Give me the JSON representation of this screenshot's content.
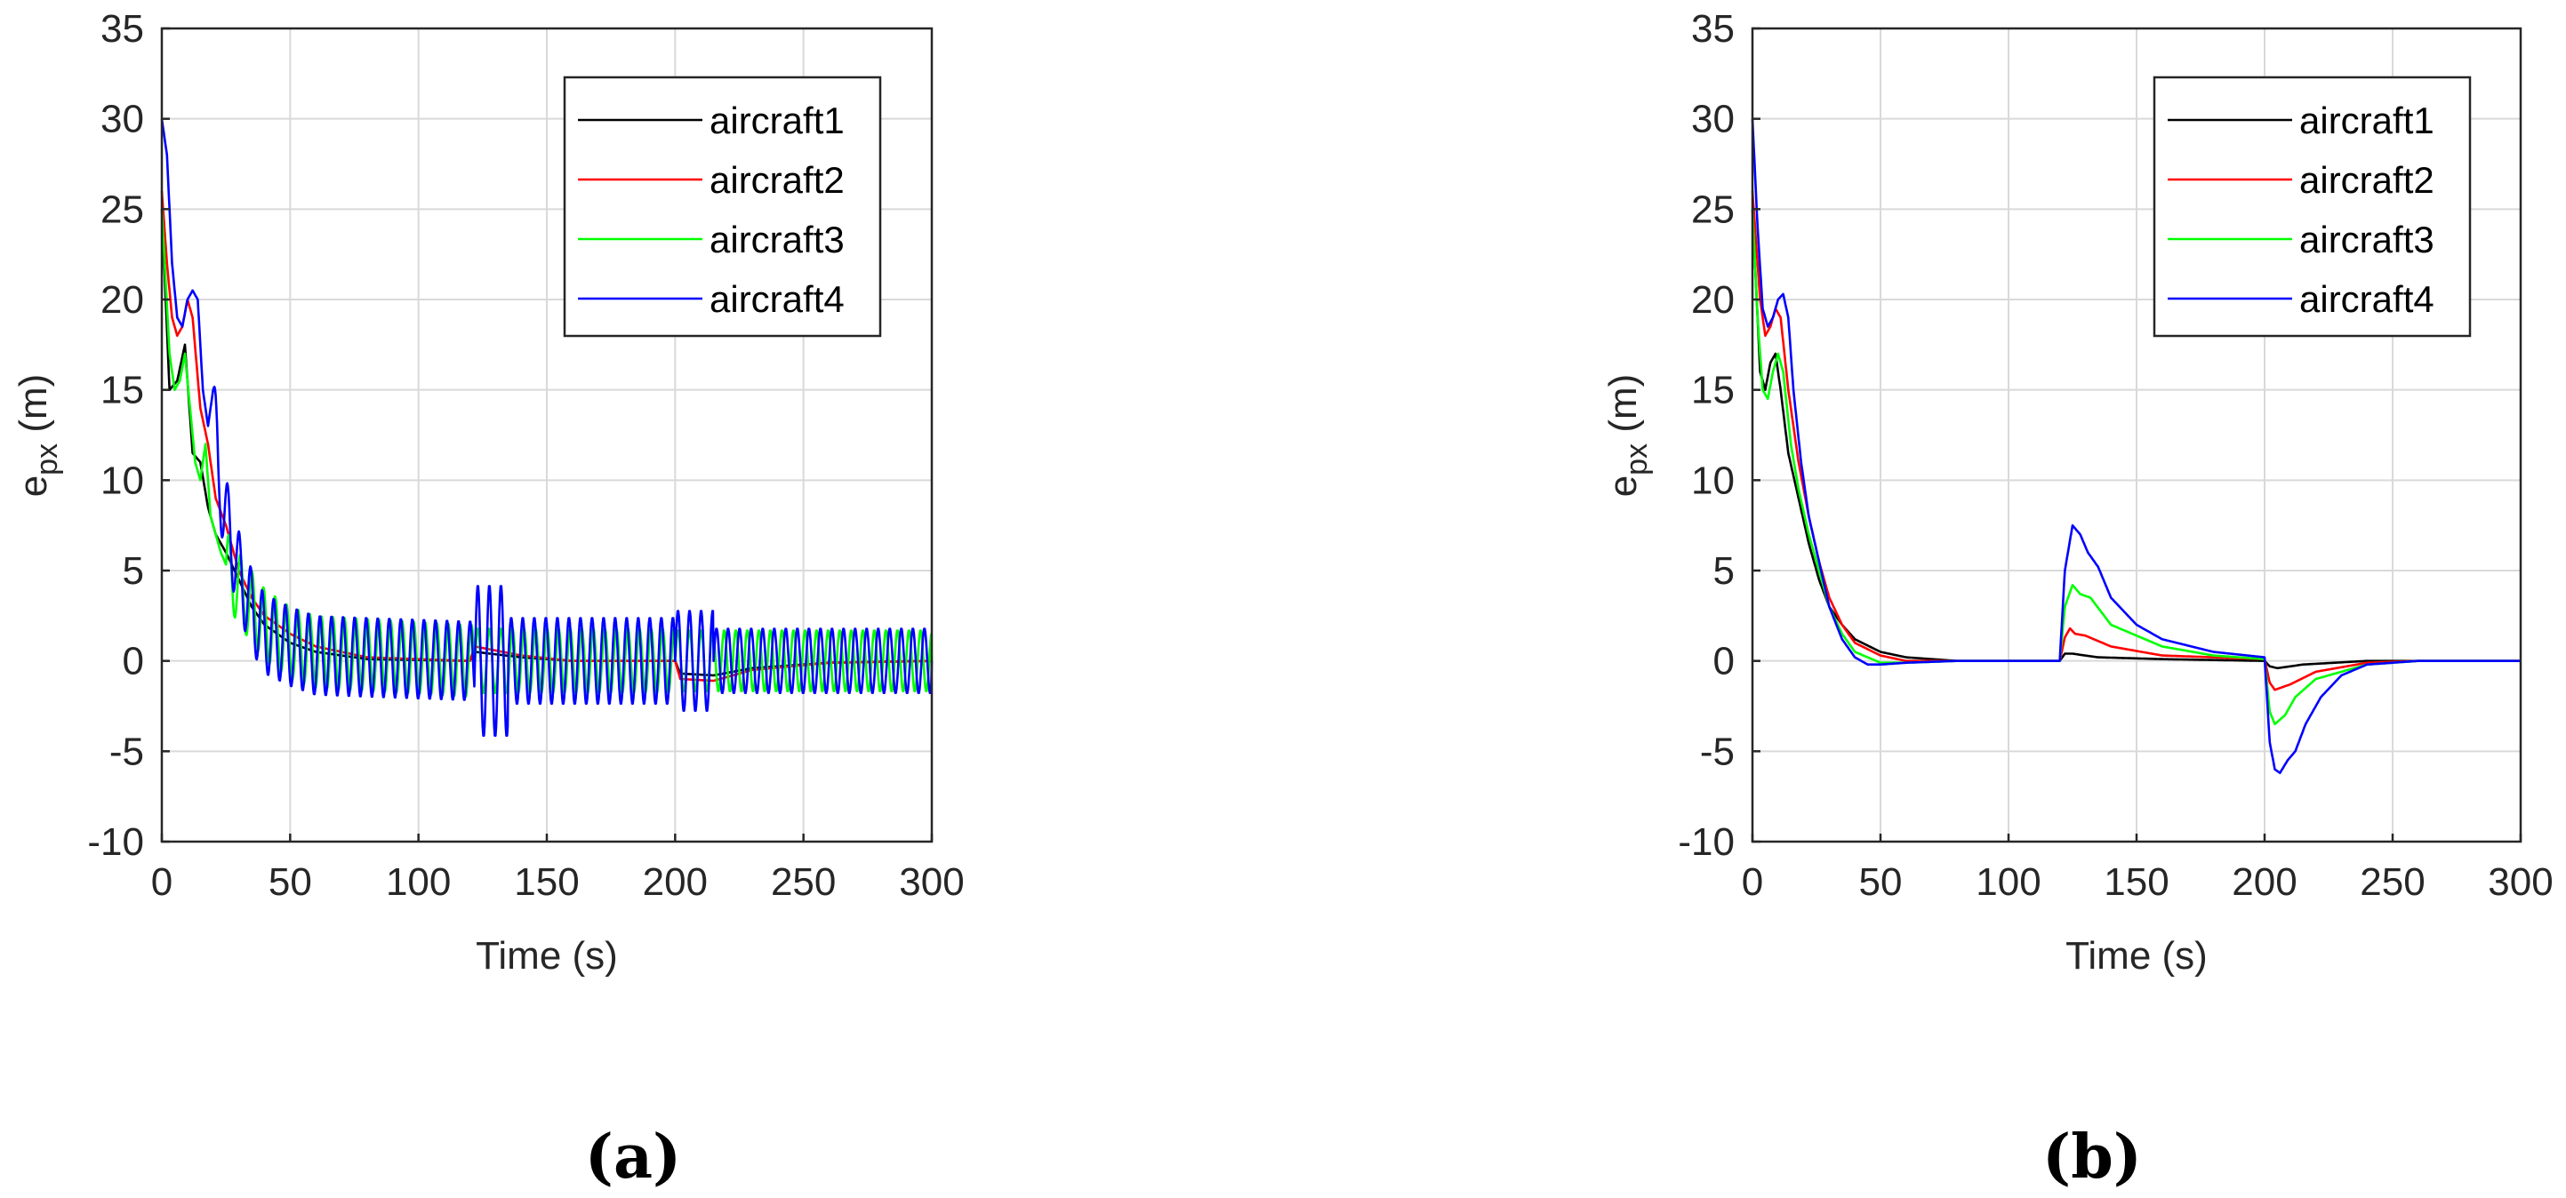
{
  "chart_data": [
    {
      "type": "line",
      "caption": "(a)",
      "xlabel": "Time (s)",
      "ylabel_base": "e",
      "ylabel_sub": "px",
      "ylabel_unit": " (m)",
      "xlim": [
        0,
        300
      ],
      "ylim": [
        -10,
        35
      ],
      "xticks": [
        "0",
        "50",
        "100",
        "150",
        "200",
        "250",
        "300"
      ],
      "yticks": [
        "-10",
        "-5",
        "0",
        "5",
        "10",
        "15",
        "20",
        "25",
        "30",
        "35"
      ],
      "grid": true,
      "legend_position": "top-right",
      "series": [
        {
          "name": "aircraft1",
          "color": "#000000",
          "points": [
            [
              0,
              25
            ],
            [
              3,
              15
            ],
            [
              6,
              15.5
            ],
            [
              9,
              17.5
            ],
            [
              12,
              11.5
            ],
            [
              15,
              11
            ],
            [
              18,
              8.5
            ],
            [
              21,
              7
            ],
            [
              25,
              6
            ],
            [
              30,
              4.5
            ],
            [
              35,
              3
            ],
            [
              40,
              2
            ],
            [
              50,
              1
            ],
            [
              60,
              0.5
            ],
            [
              80,
              0.1
            ],
            [
              120,
              0
            ],
            [
              122,
              0.5
            ],
            [
              140,
              0.2
            ],
            [
              160,
              0
            ],
            [
              200,
              0
            ],
            [
              202,
              -0.7
            ],
            [
              215,
              -0.8
            ],
            [
              230,
              -0.4
            ],
            [
              260,
              -0.1
            ],
            [
              300,
              0
            ]
          ]
        },
        {
          "name": "aircraft2",
          "color": "#ff0000",
          "points": [
            [
              0,
              26
            ],
            [
              2,
              22
            ],
            [
              4,
              19
            ],
            [
              6,
              18
            ],
            [
              8,
              18.5
            ],
            [
              10,
              20
            ],
            [
              12,
              19
            ],
            [
              15,
              14
            ],
            [
              18,
              12
            ],
            [
              21,
              9
            ],
            [
              25,
              7.5
            ],
            [
              30,
              5
            ],
            [
              35,
              3.5
            ],
            [
              40,
              2.5
            ],
            [
              50,
              1.5
            ],
            [
              60,
              0.8
            ],
            [
              80,
              0.2
            ],
            [
              120,
              0
            ],
            [
              122,
              0.8
            ],
            [
              140,
              0.3
            ],
            [
              160,
              0
            ],
            [
              200,
              0
            ],
            [
              202,
              -1
            ],
            [
              215,
              -1.1
            ],
            [
              230,
              -0.5
            ],
            [
              260,
              -0.1
            ],
            [
              300,
              0
            ]
          ]
        },
        {
          "name": "aircraft3",
          "color": "#00ff00",
          "points": [
            [
              0,
              25
            ],
            [
              3,
              17
            ],
            [
              5,
              15
            ],
            [
              7,
              15.5
            ],
            [
              9,
              17
            ],
            [
              11,
              14
            ],
            [
              13,
              11
            ],
            [
              15,
              10
            ],
            [
              17,
              12
            ],
            [
              19,
              8
            ],
            [
              21,
              7
            ],
            [
              23,
              6
            ],
            [
              26,
              5
            ],
            [
              30,
              4
            ],
            [
              35,
              3
            ],
            [
              40,
              2
            ],
            [
              50,
              1
            ],
            [
              60,
              0.5
            ],
            [
              120,
              0
            ],
            [
              200,
              0
            ],
            [
              300,
              0
            ]
          ],
          "oscillation": [
            {
              "t0": 25,
              "t1": 122,
              "amp": 2.0,
              "period": 4.5
            },
            {
              "t0": 122,
              "t1": 200,
              "amp": 1.8,
              "period": 4.5
            },
            {
              "t0": 200,
              "t1": 300,
              "amp": 1.7,
              "period": 4.5
            }
          ]
        },
        {
          "name": "aircraft4",
          "color": "#0000ff",
          "points": [
            [
              0,
              30
            ],
            [
              2,
              28
            ],
            [
              4,
              22
            ],
            [
              6,
              19
            ],
            [
              8,
              18.5
            ],
            [
              10,
              20
            ],
            [
              12,
              20.5
            ],
            [
              14,
              20
            ],
            [
              16,
              15
            ],
            [
              18,
              13
            ],
            [
              20,
              15
            ],
            [
              22,
              10
            ],
            [
              25,
              8
            ],
            [
              28,
              6
            ],
            [
              32,
              4
            ],
            [
              36,
              2.5
            ],
            [
              40,
              1.5
            ],
            [
              50,
              0.8
            ],
            [
              60,
              0.3
            ],
            [
              120,
              0
            ],
            [
              200,
              0
            ],
            [
              300,
              0
            ]
          ],
          "oscillation": [
            {
              "t0": 20,
              "t1": 122,
              "amp": 2.2,
              "period": 4.5
            },
            {
              "t0": 122,
              "t1": 135,
              "amp": 4.2,
              "period": 4.5
            },
            {
              "t0": 135,
              "t1": 200,
              "amp": 2.4,
              "period": 4.5
            },
            {
              "t0": 200,
              "t1": 215,
              "amp": 2.8,
              "period": 4.5
            },
            {
              "t0": 215,
              "t1": 300,
              "amp": 1.8,
              "period": 4.5
            }
          ]
        }
      ]
    },
    {
      "type": "line",
      "caption": "(b)",
      "xlabel": "Time (s)",
      "ylabel_base": "e",
      "ylabel_sub": "px",
      "ylabel_unit": " (m)",
      "xlim": [
        0,
        300
      ],
      "ylim": [
        -10,
        35
      ],
      "xticks": [
        "0",
        "50",
        "100",
        "150",
        "200",
        "250",
        "300"
      ],
      "yticks": [
        "-10",
        "-5",
        "0",
        "5",
        "10",
        "15",
        "20",
        "25",
        "30",
        "35"
      ],
      "grid": true,
      "legend_position": "top-right",
      "series": [
        {
          "name": "aircraft1",
          "color": "#000000",
          "points": [
            [
              0,
              25
            ],
            [
              3,
              16
            ],
            [
              5,
              15
            ],
            [
              7,
              16.5
            ],
            [
              9,
              17
            ],
            [
              11,
              15
            ],
            [
              14,
              11.5
            ],
            [
              18,
              9
            ],
            [
              22,
              6.5
            ],
            [
              26,
              4.5
            ],
            [
              30,
              3
            ],
            [
              35,
              2
            ],
            [
              40,
              1.2
            ],
            [
              50,
              0.5
            ],
            [
              60,
              0.2
            ],
            [
              80,
              0
            ],
            [
              120,
              0
            ],
            [
              122,
              0.4
            ],
            [
              125,
              0.4
            ],
            [
              135,
              0.2
            ],
            [
              160,
              0.1
            ],
            [
              200,
              0
            ],
            [
              202,
              -0.3
            ],
            [
              205,
              -0.4
            ],
            [
              215,
              -0.2
            ],
            [
              240,
              0
            ],
            [
              300,
              0
            ]
          ]
        },
        {
          "name": "aircraft2",
          "color": "#ff0000",
          "points": [
            [
              0,
              26
            ],
            [
              3,
              20
            ],
            [
              5,
              18
            ],
            [
              7,
              18.5
            ],
            [
              9,
              19.5
            ],
            [
              11,
              19
            ],
            [
              14,
              15
            ],
            [
              18,
              11
            ],
            [
              22,
              8
            ],
            [
              26,
              5.5
            ],
            [
              30,
              3.5
            ],
            [
              35,
              2
            ],
            [
              40,
              1
            ],
            [
              50,
              0.3
            ],
            [
              60,
              0
            ],
            [
              120,
              0
            ],
            [
              122,
              1.3
            ],
            [
              124,
              1.8
            ],
            [
              126,
              1.5
            ],
            [
              130,
              1.4
            ],
            [
              140,
              0.8
            ],
            [
              160,
              0.3
            ],
            [
              200,
              0.1
            ],
            [
              202,
              -1.2
            ],
            [
              204,
              -1.6
            ],
            [
              210,
              -1.3
            ],
            [
              220,
              -0.6
            ],
            [
              240,
              -0.1
            ],
            [
              260,
              0
            ],
            [
              300,
              0
            ]
          ]
        },
        {
          "name": "aircraft3",
          "color": "#00ff00",
          "points": [
            [
              0,
              25
            ],
            [
              2,
              19
            ],
            [
              4,
              15
            ],
            [
              6,
              14.5
            ],
            [
              8,
              16
            ],
            [
              10,
              17
            ],
            [
              12,
              16
            ],
            [
              15,
              12
            ],
            [
              18,
              9.5
            ],
            [
              22,
              7
            ],
            [
              26,
              5
            ],
            [
              30,
              3
            ],
            [
              35,
              1.5
            ],
            [
              40,
              0.5
            ],
            [
              50,
              -0.1
            ],
            [
              60,
              -0.1
            ],
            [
              80,
              0
            ],
            [
              120,
              0
            ],
            [
              122,
              3
            ],
            [
              125,
              4.2
            ],
            [
              128,
              3.7
            ],
            [
              132,
              3.5
            ],
            [
              140,
              2
            ],
            [
              160,
              0.8
            ],
            [
              180,
              0.3
            ],
            [
              200,
              0.1
            ],
            [
              202,
              -2.8
            ],
            [
              204,
              -3.5
            ],
            [
              208,
              -3
            ],
            [
              212,
              -2
            ],
            [
              220,
              -1
            ],
            [
              240,
              -0.2
            ],
            [
              260,
              0
            ],
            [
              300,
              0
            ]
          ]
        },
        {
          "name": "aircraft4",
          "color": "#0000ff",
          "points": [
            [
              0,
              30
            ],
            [
              2,
              24
            ],
            [
              4,
              19.5
            ],
            [
              6,
              18.5
            ],
            [
              8,
              19
            ],
            [
              10,
              20
            ],
            [
              12,
              20.3
            ],
            [
              14,
              19
            ],
            [
              16,
              15
            ],
            [
              19,
              11
            ],
            [
              22,
              8
            ],
            [
              26,
              5.5
            ],
            [
              30,
              3
            ],
            [
              35,
              1.2
            ],
            [
              40,
              0.2
            ],
            [
              45,
              -0.2
            ],
            [
              50,
              -0.2
            ],
            [
              60,
              -0.1
            ],
            [
              80,
              0
            ],
            [
              120,
              0
            ],
            [
              122,
              5
            ],
            [
              125,
              7.5
            ],
            [
              128,
              7
            ],
            [
              131,
              6
            ],
            [
              135,
              5.2
            ],
            [
              140,
              3.5
            ],
            [
              150,
              2
            ],
            [
              160,
              1.2
            ],
            [
              180,
              0.5
            ],
            [
              200,
              0.2
            ],
            [
              202,
              -4.5
            ],
            [
              204,
              -6
            ],
            [
              206,
              -6.2
            ],
            [
              209,
              -5.5
            ],
            [
              212,
              -5
            ],
            [
              216,
              -3.5
            ],
            [
              222,
              -2
            ],
            [
              230,
              -0.8
            ],
            [
              240,
              -0.2
            ],
            [
              260,
              0
            ],
            [
              300,
              0
            ]
          ]
        }
      ]
    }
  ]
}
